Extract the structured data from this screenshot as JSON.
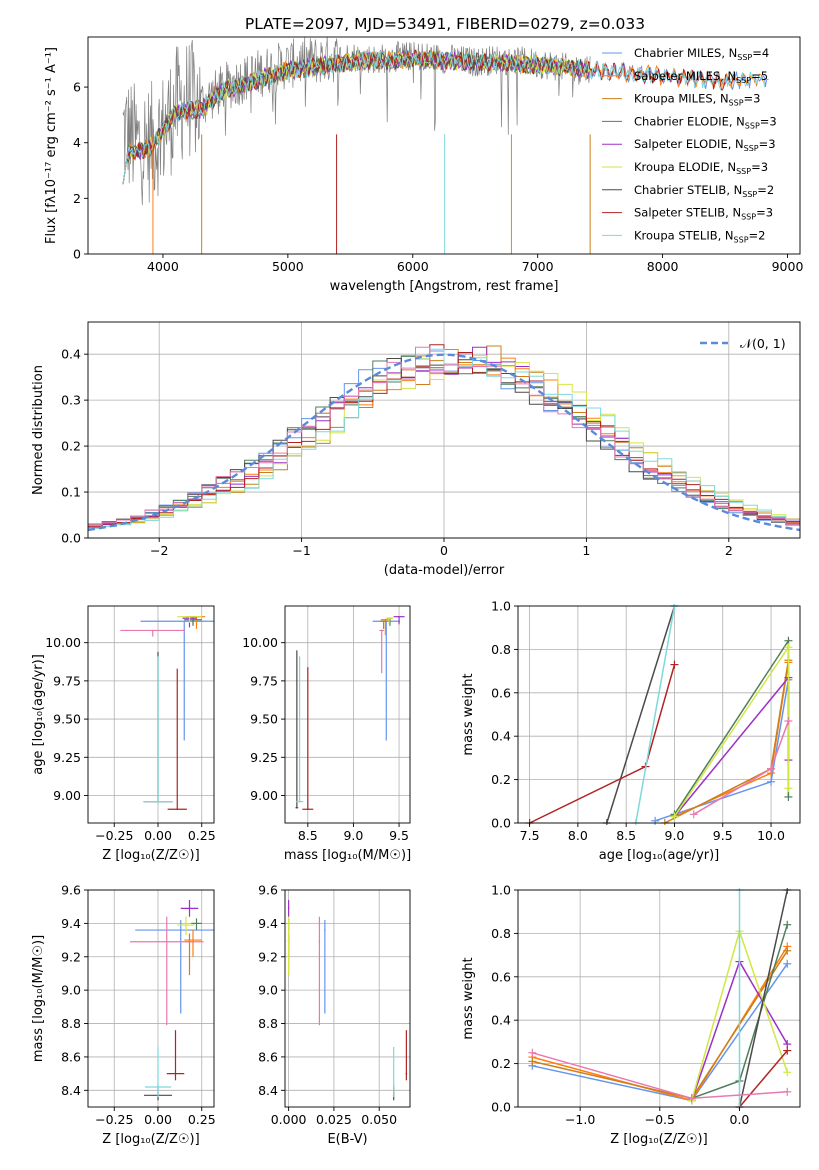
{
  "figure": {
    "title": "PLATE=2097, MJD=53491, FIBERID=0279, z=0.033"
  },
  "colors": {
    "series": [
      "#6495ed",
      "#ff7f0e",
      "#cc7f1a",
      "#4f7f5a",
      "#9b30c8",
      "#d4e645",
      "#4a4a4a",
      "#b22222",
      "#7fd8dc"
    ],
    "pink": "#e879b0",
    "gray_spectrum": "#808080",
    "normal_curve": "#5b8ad9",
    "grid": "#b0b0b0"
  },
  "chart_data": [
    {
      "id": "spectrum",
      "type": "line",
      "xlabel": "wavelength [Angstrom, rest frame]",
      "ylabel": "Flux [f$_\\lambda$10$^{-17}$ erg cm$^{-2}$ s$^{-1}$ A$^{-1}$]",
      "ylabel_text": "Flux [fλ10⁻¹⁷ erg cm⁻² s⁻¹ A⁻¹]",
      "xlim": [
        3400,
        9100
      ],
      "ylim": [
        0,
        7.8
      ],
      "xticks": [
        4000,
        5000,
        6000,
        7000,
        8000,
        9000
      ],
      "yticks": [
        0,
        2,
        4,
        6
      ],
      "grid": false,
      "legend_position": "right",
      "data_x": [
        3700,
        3800,
        3900,
        4000,
        4100,
        4200,
        4300,
        4500,
        4700,
        4900,
        5100,
        5300,
        5500,
        5700,
        5900,
        6100,
        6300,
        6500,
        6700,
        6900,
        7100,
        7300,
        7400
      ],
      "data_y": [
        4.4,
        3.9,
        4.0,
        4.4,
        5.3,
        5.6,
        5.4,
        6.0,
        6.4,
        6.7,
        6.9,
        7.0,
        7.1,
        7.0,
        7.1,
        7.1,
        7.0,
        6.9,
        7.0,
        6.9,
        6.8,
        6.6,
        6.7
      ],
      "model_x": [
        3700,
        3900,
        4100,
        4300,
        4500,
        5000,
        5500,
        6000,
        6500,
        7000,
        7500,
        8000,
        8500,
        8800
      ],
      "model_y": [
        3.6,
        3.8,
        5.1,
        5.2,
        5.9,
        6.6,
        6.9,
        7.0,
        6.9,
        6.8,
        6.6,
        6.4,
        6.2,
        6.3
      ],
      "series": [
        {
          "name": "Chabrier MILES, N_SSP=4",
          "label_main": "Chabrier MILES, N",
          "label_sub": "SSP",
          "label_tail": "=4"
        },
        {
          "name": "Salpeter MILES, N_SSP=5",
          "label_main": "Salpeter MILES, N",
          "label_sub": "SSP",
          "label_tail": "=5"
        },
        {
          "name": "Kroupa MILES, N_SSP=3",
          "label_main": "Kroupa MILES, N",
          "label_sub": "SSP",
          "label_tail": "=3"
        },
        {
          "name": "Chabrier ELODIE, N_SSP=3",
          "label_main": "Chabrier ELODIE, N",
          "label_sub": "SSP",
          "label_tail": "=3"
        },
        {
          "name": "Salpeter ELODIE, N_SSP=3",
          "label_main": "Salpeter ELODIE, N",
          "label_sub": "SSP",
          "label_tail": "=3"
        },
        {
          "name": "Kroupa ELODIE, N_SSP=3",
          "label_main": "Kroupa ELODIE, N",
          "label_sub": "SSP",
          "label_tail": "=3"
        },
        {
          "name": "Chabrier STELIB, N_SSP=2",
          "label_main": "Chabrier STELIB, N",
          "label_sub": "SSP",
          "label_tail": "=2"
        },
        {
          "name": "Salpeter STELIB, N_SSP=3",
          "label_main": "Salpeter STELIB, N",
          "label_sub": "SSP",
          "label_tail": "=3"
        },
        {
          "name": "Kroupa STELIB, N_SSP=2",
          "label_main": "Kroupa STELIB, N",
          "label_sub": "SSP",
          "label_tail": "=2"
        }
      ]
    },
    {
      "id": "residuals",
      "type": "line",
      "xlabel": "(data-model)/error",
      "ylabel": "Normed distribution",
      "xlim": [
        -2.5,
        2.5
      ],
      "ylim": [
        0,
        0.47
      ],
      "xticks": [
        -2,
        -1,
        0,
        1,
        2
      ],
      "yticks": [
        0.0,
        0.1,
        0.2,
        0.3,
        0.4
      ],
      "grid": true,
      "legend_position": "top-right",
      "legend": "𝒩(0, 1)",
      "bin_width": 0.1
    },
    {
      "id": "age_vs_Z",
      "type": "scatter",
      "xlabel": "Z [log₁₀(Z/Z☉)]",
      "ylabel": "age  [log₁₀(age/yr)]",
      "xlim": [
        -0.4,
        0.32
      ],
      "ylim": [
        8.82,
        10.24
      ],
      "xticks": [
        -0.25,
        0.0,
        0.25
      ],
      "yticks": [
        9.0,
        9.25,
        9.5,
        9.75,
        10.0
      ],
      "grid": true,
      "points": [
        {
          "series": 0,
          "x": 0.15,
          "y": 10.14,
          "xerr": 0.5,
          "yerr": [
            0.78,
            0.0
          ]
        },
        {
          "series": 1,
          "x": 0.22,
          "y": 10.17,
          "xerr": 0.1,
          "yerr": [
            0.08,
            0.0
          ]
        },
        {
          "series": 2,
          "x": 0.2,
          "y": 10.17,
          "xerr": 0.08,
          "yerr": [
            0.05,
            0.0
          ]
        },
        {
          "series": 3,
          "x": 0.2,
          "y": 10.15,
          "xerr": 0.1,
          "yerr": [
            0.04,
            0.0
          ]
        },
        {
          "series": 4,
          "x": 0.18,
          "y": 10.16,
          "xerr": 0.08,
          "yerr": [
            0.06,
            0.0
          ]
        },
        {
          "series": 5,
          "x": 0.18,
          "y": 10.17,
          "xerr": 0.14,
          "yerr": [
            0.04,
            0.0
          ]
        },
        {
          "series": 6,
          "x": 0.0,
          "y": 8.96,
          "xerr": 0.16,
          "yerr": [
            0.0,
            0.98
          ]
        },
        {
          "series": 7,
          "x": 0.11,
          "y": 8.91,
          "xerr": 0.11,
          "yerr": [
            0.0,
            0.92
          ]
        },
        {
          "series": 8,
          "x": 0.0,
          "y": 8.96,
          "xerr": 0.17,
          "yerr": [
            0.0,
            0.95
          ]
        },
        {
          "series": "pink",
          "x": -0.03,
          "y": 10.08,
          "xerr": 0.37,
          "yerr": [
            0.04,
            0.0
          ]
        }
      ]
    },
    {
      "id": "age_vs_mass",
      "type": "scatter",
      "xlabel": "mass [log₁₀(M/M☉)]",
      "ylabel": "",
      "xlim": [
        8.25,
        9.62
      ],
      "ylim": [
        8.82,
        10.24
      ],
      "xticks": [
        8.5,
        9.0,
        9.5
      ],
      "yticks": [
        9.0,
        9.25,
        9.5,
        9.75,
        10.0
      ],
      "grid": true,
      "points": [
        {
          "series": 0,
          "x": 9.36,
          "y": 10.14,
          "xerr": 0.3,
          "yerr": [
            0.78,
            0.0
          ]
        },
        {
          "series": 1,
          "x": 9.35,
          "y": 10.15,
          "xerr": 0.1,
          "yerr": [
            0.1,
            0.0
          ]
        },
        {
          "series": 2,
          "x": 9.33,
          "y": 10.14,
          "xerr": 0.08,
          "yerr": [
            0.05,
            0.0
          ]
        },
        {
          "series": 3,
          "x": 9.4,
          "y": 10.16,
          "xerr": 0.06,
          "yerr": [
            0.05,
            0.0
          ]
        },
        {
          "series": 4,
          "x": 9.5,
          "y": 10.17,
          "xerr": 0.12,
          "yerr": [
            0.05,
            0.0
          ]
        },
        {
          "series": 5,
          "x": 9.39,
          "y": 10.16,
          "xerr": 0.08,
          "yerr": [
            0.04,
            0.0
          ]
        },
        {
          "series": 6,
          "x": 8.38,
          "y": 8.92,
          "xerr": 0.03,
          "yerr": [
            0.0,
            1.03
          ]
        },
        {
          "series": 7,
          "x": 8.5,
          "y": 8.91,
          "xerr": 0.12,
          "yerr": [
            0.0,
            0.93
          ]
        },
        {
          "series": 8,
          "x": 8.41,
          "y": 8.96,
          "xerr": 0.08,
          "yerr": [
            0.0,
            0.95
          ]
        },
        {
          "series": "pink",
          "x": 9.31,
          "y": 10.08,
          "xerr": 0.05,
          "yerr": [
            0.28,
            0.0
          ]
        }
      ]
    },
    {
      "id": "weight_vs_age",
      "type": "line",
      "xlabel": "age  [log₁₀(age/yr)]",
      "ylabel": "mass weight",
      "xlim": [
        7.38,
        10.3
      ],
      "ylim": [
        0,
        1
      ],
      "xticks": [
        7.5,
        8.0,
        8.5,
        9.0,
        9.5,
        10.0
      ],
      "yticks": [
        0.0,
        0.2,
        0.4,
        0.6,
        0.8,
        1.0
      ],
      "grid": true,
      "series": [
        {
          "series": 0,
          "x": [
            8.8,
            10.0,
            10.18
          ],
          "y": [
            0.01,
            0.19,
            0.66
          ]
        },
        {
          "series": 1,
          "x": [
            9.0,
            10.0,
            10.18
          ],
          "y": [
            0.03,
            0.23,
            0.74
          ]
        },
        {
          "series": 2,
          "x": [
            8.9,
            10.0,
            10.18
          ],
          "y": [
            0.0,
            0.25,
            0.75
          ]
        },
        {
          "series": 3,
          "x": [
            9.0,
            10.18,
            10.18
          ],
          "y": [
            0.04,
            0.84,
            0.12
          ]
        },
        {
          "series": 4,
          "x": [
            9.0,
            10.18,
            10.18
          ],
          "y": [
            0.03,
            0.67,
            0.29
          ]
        },
        {
          "series": 5,
          "x": [
            9.0,
            10.18,
            10.18
          ],
          "y": [
            0.03,
            0.81,
            0.16
          ]
        },
        {
          "series": 6,
          "x": [
            8.3,
            9.0
          ],
          "y": [
            0.0,
            1.0
          ]
        },
        {
          "series": 7,
          "x": [
            7.5,
            8.7,
            9.0
          ],
          "y": [
            0.0,
            0.26,
            0.73
          ]
        },
        {
          "series": 8,
          "x": [
            8.6,
            9.0
          ],
          "y": [
            0.0,
            1.0
          ]
        },
        {
          "series": "pink",
          "x": [
            9.2,
            10.0,
            10.18
          ],
          "y": [
            0.04,
            0.25,
            0.47
          ]
        }
      ]
    },
    {
      "id": "mass_vs_Z",
      "type": "scatter",
      "xlabel": "Z [log₁₀(Z/Z☉)]",
      "ylabel": "mass [log₁₀(M/M☉)]",
      "xlim": [
        -0.4,
        0.32
      ],
      "ylim": [
        8.3,
        9.6
      ],
      "xticks": [
        -0.25,
        0.0,
        0.25
      ],
      "yticks": [
        8.4,
        8.6,
        8.8,
        9.0,
        9.2,
        9.4,
        9.6
      ],
      "grid": true,
      "points": [
        {
          "series": 0,
          "x": 0.13,
          "y": 9.36,
          "xerr": 0.52,
          "yerr": [
            0.5,
            0.06
          ]
        },
        {
          "series": 1,
          "x": 0.2,
          "y": 9.3,
          "xerr": 0.1,
          "yerr": [
            0.1,
            0.06
          ]
        },
        {
          "series": 2,
          "x": 0.18,
          "y": 9.29,
          "xerr": 0.05,
          "yerr": [
            0.2,
            0.05
          ]
        },
        {
          "series": 3,
          "x": 0.22,
          "y": 9.4,
          "xerr": 0.06,
          "yerr": [
            0.04,
            0.03
          ]
        },
        {
          "series": 4,
          "x": 0.18,
          "y": 9.49,
          "xerr": 0.1,
          "yerr": [
            0.05,
            0.05
          ]
        },
        {
          "series": 5,
          "x": 0.16,
          "y": 9.39,
          "xerr": 0.1,
          "yerr": [
            0.06,
            0.05
          ]
        },
        {
          "series": 6,
          "x": 0.0,
          "y": 8.37,
          "xerr": 0.16,
          "yerr": [
            0.03,
            0.06
          ]
        },
        {
          "series": 7,
          "x": 0.1,
          "y": 8.5,
          "xerr": 0.1,
          "yerr": [
            0.04,
            0.26
          ]
        },
        {
          "series": 8,
          "x": 0.0,
          "y": 8.42,
          "xerr": 0.15,
          "yerr": [
            0.06,
            0.24
          ]
        },
        {
          "series": "pink",
          "x": 0.05,
          "y": 9.29,
          "xerr": 0.42,
          "yerr": [
            0.5,
            0.15
          ]
        }
      ]
    },
    {
      "id": "mass_vs_EBV",
      "type": "scatter",
      "xlabel": "E(B-V)",
      "ylabel": "",
      "xlim": [
        -0.002,
        0.067
      ],
      "ylim": [
        8.3,
        9.6
      ],
      "xticks": [
        0.0,
        0.025,
        0.05
      ],
      "yticks": [
        8.4,
        8.6,
        8.8,
        9.0,
        9.2,
        9.4,
        9.6
      ],
      "grid": true,
      "points": [
        {
          "series": 0,
          "x": 0.02,
          "y": 9.36,
          "yerr": [
            0.5,
            0.06
          ]
        },
        {
          "series": 1,
          "x": 0.0,
          "y": 9.3,
          "yerr": [
            0.1,
            0.06
          ]
        },
        {
          "series": 2,
          "x": 0.0,
          "y": 9.29,
          "yerr": [
            0.2,
            0.05
          ]
        },
        {
          "series": 3,
          "x": 0.0,
          "y": 9.4,
          "yerr": [
            0.04,
            0.03
          ]
        },
        {
          "series": 4,
          "x": 0.0,
          "y": 9.49,
          "yerr": [
            0.05,
            0.05
          ]
        },
        {
          "series": 5,
          "x": 0.0,
          "y": 9.39,
          "yerr": [
            0.3,
            0.05
          ]
        },
        {
          "series": 6,
          "x": 0.058,
          "y": 8.37,
          "yerr": [
            0.03,
            0.06
          ]
        },
        {
          "series": 7,
          "x": 0.065,
          "y": 8.5,
          "yerr": [
            0.04,
            0.26
          ]
        },
        {
          "series": 8,
          "x": 0.058,
          "y": 8.42,
          "yerr": [
            0.06,
            0.24
          ]
        },
        {
          "series": "pink",
          "x": 0.017,
          "y": 9.29,
          "yerr": [
            0.5,
            0.15
          ]
        }
      ]
    },
    {
      "id": "weight_vs_Z",
      "type": "line",
      "xlabel": "Z [log₁₀(Z/Z☉)]",
      "ylabel": "mass weight",
      "xlim": [
        -1.39,
        0.38
      ],
      "ylim": [
        0,
        1
      ],
      "xticks": [
        -1.0,
        -0.5,
        0.0
      ],
      "xtick_labels": [
        "−1.0",
        "−0.5",
        "0.0"
      ],
      "yticks": [
        0.0,
        0.2,
        0.4,
        0.6,
        0.8,
        1.0
      ],
      "grid": true,
      "series": [
        {
          "series": 0,
          "x": [
            -1.3,
            -0.3,
            0.3
          ],
          "y": [
            0.19,
            0.03,
            0.66
          ]
        },
        {
          "series": 1,
          "x": [
            -1.3,
            -0.3,
            0.3
          ],
          "y": [
            0.23,
            0.03,
            0.74
          ]
        },
        {
          "series": 2,
          "x": [
            -1.3,
            -0.3,
            0.3
          ],
          "y": [
            0.21,
            0.04,
            0.72
          ]
        },
        {
          "series": 3,
          "x": [
            -0.3,
            0.0,
            0.3
          ],
          "y": [
            0.04,
            0.12,
            0.84
          ]
        },
        {
          "series": 4,
          "x": [
            -0.3,
            0.0,
            0.3
          ],
          "y": [
            0.03,
            0.67,
            0.29
          ]
        },
        {
          "series": 5,
          "x": [
            -0.3,
            0.0,
            0.3
          ],
          "y": [
            0.03,
            0.81,
            0.16
          ]
        },
        {
          "series": 6,
          "x": [
            0.0,
            0.3
          ],
          "y": [
            0.0,
            1.0
          ]
        },
        {
          "series": 7,
          "x": [
            0.0,
            0.3
          ],
          "y": [
            0.0,
            0.26
          ]
        },
        {
          "series": 8,
          "x": [
            0.0,
            0.0
          ],
          "y": [
            0.0,
            1.0
          ]
        },
        {
          "series": "pink",
          "x": [
            -1.3,
            -0.3,
            0.3
          ],
          "y": [
            0.25,
            0.04,
            0.07
          ]
        }
      ]
    }
  ]
}
